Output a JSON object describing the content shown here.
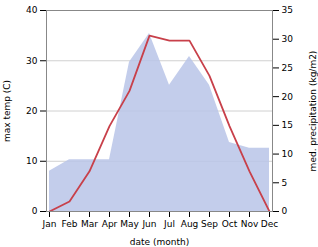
{
  "chart_data": {
    "type": "line",
    "categories": [
      "Jan",
      "Feb",
      "Mar",
      "Apr",
      "May",
      "Jun",
      "Jul",
      "Aug",
      "Sep",
      "Oct",
      "Nov",
      "Dec"
    ],
    "series": [
      {
        "type": "area",
        "axis": "y2",
        "color": "#b8c4e8",
        "values": [
          7,
          9,
          9,
          9,
          26,
          31,
          22,
          27,
          22,
          12,
          11,
          11
        ]
      },
      {
        "type": "line",
        "color": "#c8404a",
        "values": [
          0,
          2,
          8,
          17,
          24,
          35,
          34,
          34,
          27,
          17,
          8,
          0
        ]
      }
    ],
    "xlabel": "date (month)",
    "ylabel": "max temp (C)",
    "y2label": "med. precipitation (kg/m2)",
    "ylim": [
      0,
      40
    ],
    "yticks": [
      0,
      10,
      20,
      30,
      40
    ],
    "y2lim": [
      0,
      35
    ],
    "y2ticks": [
      0,
      5,
      10,
      15,
      20,
      25,
      30,
      35
    ],
    "grid": true
  }
}
